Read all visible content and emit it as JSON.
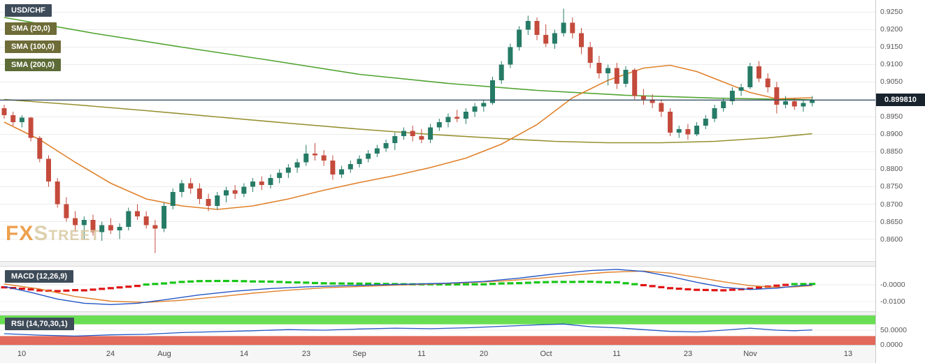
{
  "legend": {
    "symbol": {
      "label": "USD/CHF",
      "bg": "#3e4b58"
    },
    "smas": [
      {
        "label": "SMA (20,0)",
        "bg": "#6e6c37"
      },
      {
        "label": "SMA (100,0)",
        "bg": "#6e6c37"
      },
      {
        "label": "SMA (200,0)",
        "bg": "#5d6c37"
      }
    ]
  },
  "watermark": {
    "fx": "FX",
    "street": "Street",
    "fx_color": "#eb9030",
    "street_color": "#d9c9a2"
  },
  "icons": {
    "resize_grip": "≡"
  },
  "chart_data": {
    "type": "candlestick",
    "symbol": "USD/CHF",
    "timeframe": "daily",
    "price": 0.89981,
    "price_label": "0.899810",
    "y_axis": {
      "min": 0.86,
      "max": 0.925,
      "step": 0.005,
      "levels": [
        0.925,
        0.92,
        0.915,
        0.91,
        0.905,
        0.9,
        0.895,
        0.89,
        0.885,
        0.88,
        0.875,
        0.87,
        0.865,
        0.86
      ]
    },
    "x_ticks": [
      {
        "label": "10",
        "i": 2
      },
      {
        "label": "24",
        "i": 12
      },
      {
        "label": "Aug",
        "i": 18
      },
      {
        "label": "14",
        "i": 27
      },
      {
        "label": "23",
        "i": 34
      },
      {
        "label": "Sep",
        "i": 40
      },
      {
        "label": "11",
        "i": 47
      },
      {
        "label": "20",
        "i": 54
      },
      {
        "label": "Oct",
        "i": 61
      },
      {
        "label": "11",
        "i": 69
      },
      {
        "label": "23",
        "i": 77
      },
      {
        "label": "Nov",
        "i": 84
      },
      {
        "label": "13",
        "i": 95
      }
    ],
    "candles": [
      [
        0.8975,
        0.8985,
        0.8945,
        0.8955
      ],
      [
        0.8955,
        0.8965,
        0.8925,
        0.8935
      ],
      [
        0.8935,
        0.8955,
        0.892,
        0.8948
      ],
      [
        0.8948,
        0.895,
        0.888,
        0.889
      ],
      [
        0.889,
        0.8895,
        0.882,
        0.883
      ],
      [
        0.883,
        0.884,
        0.875,
        0.8765
      ],
      [
        0.8765,
        0.8775,
        0.869,
        0.87
      ],
      [
        0.87,
        0.872,
        0.865,
        0.866
      ],
      [
        0.866,
        0.868,
        0.862,
        0.864
      ],
      [
        0.864,
        0.8665,
        0.86,
        0.8655
      ],
      [
        0.8655,
        0.867,
        0.861,
        0.862
      ],
      [
        0.862,
        0.865,
        0.8595,
        0.864
      ],
      [
        0.864,
        0.866,
        0.8615,
        0.8625
      ],
      [
        0.8625,
        0.8645,
        0.86,
        0.8635
      ],
      [
        0.8635,
        0.869,
        0.8625,
        0.868
      ],
      [
        0.868,
        0.87,
        0.8655,
        0.8665
      ],
      [
        0.8665,
        0.868,
        0.863,
        0.864
      ],
      [
        0.864,
        0.8655,
        0.856,
        0.863
      ],
      [
        0.863,
        0.8705,
        0.862,
        0.8695
      ],
      [
        0.8695,
        0.8745,
        0.8685,
        0.8735
      ],
      [
        0.8735,
        0.877,
        0.872,
        0.876
      ],
      [
        0.876,
        0.8775,
        0.873,
        0.8745
      ],
      [
        0.8745,
        0.876,
        0.87,
        0.8715
      ],
      [
        0.8715,
        0.873,
        0.868,
        0.8695
      ],
      [
        0.8695,
        0.8735,
        0.8685,
        0.8725
      ],
      [
        0.8725,
        0.875,
        0.8705,
        0.874
      ],
      [
        0.874,
        0.8755,
        0.8715,
        0.873
      ],
      [
        0.873,
        0.876,
        0.872,
        0.875
      ],
      [
        0.875,
        0.8775,
        0.8735,
        0.8765
      ],
      [
        0.8765,
        0.878,
        0.874,
        0.8755
      ],
      [
        0.8755,
        0.8785,
        0.8745,
        0.8775
      ],
      [
        0.8775,
        0.88,
        0.876,
        0.879
      ],
      [
        0.879,
        0.8815,
        0.8775,
        0.8805
      ],
      [
        0.8805,
        0.883,
        0.879,
        0.882
      ],
      [
        0.882,
        0.887,
        0.881,
        0.8845
      ],
      [
        0.8845,
        0.8875,
        0.8825,
        0.884
      ],
      [
        0.884,
        0.8855,
        0.881,
        0.8825
      ],
      [
        0.8825,
        0.884,
        0.877,
        0.8785
      ],
      [
        0.8785,
        0.881,
        0.8775,
        0.88
      ],
      [
        0.88,
        0.8825,
        0.879,
        0.8815
      ],
      [
        0.8815,
        0.884,
        0.8805,
        0.883
      ],
      [
        0.883,
        0.8855,
        0.882,
        0.8845
      ],
      [
        0.8845,
        0.887,
        0.8835,
        0.886
      ],
      [
        0.886,
        0.8885,
        0.885,
        0.8875
      ],
      [
        0.8875,
        0.8905,
        0.8855,
        0.8895
      ],
      [
        0.8895,
        0.892,
        0.8885,
        0.891
      ],
      [
        0.891,
        0.8925,
        0.888,
        0.8895
      ],
      [
        0.8895,
        0.8915,
        0.8875,
        0.8885
      ],
      [
        0.8885,
        0.893,
        0.8875,
        0.892
      ],
      [
        0.892,
        0.8945,
        0.891,
        0.8935
      ],
      [
        0.8935,
        0.896,
        0.892,
        0.895
      ],
      [
        0.895,
        0.897,
        0.8935,
        0.8945
      ],
      [
        0.8945,
        0.8975,
        0.893,
        0.8965
      ],
      [
        0.8965,
        0.899,
        0.895,
        0.898
      ],
      [
        0.898,
        0.9,
        0.8965,
        0.899
      ],
      [
        0.899,
        0.9065,
        0.8985,
        0.9055
      ],
      [
        0.9055,
        0.911,
        0.9045,
        0.91
      ],
      [
        0.91,
        0.916,
        0.909,
        0.915
      ],
      [
        0.915,
        0.921,
        0.914,
        0.92
      ],
      [
        0.92,
        0.924,
        0.9185,
        0.9225
      ],
      [
        0.9225,
        0.9235,
        0.917,
        0.9185
      ],
      [
        0.9185,
        0.9215,
        0.915,
        0.916
      ],
      [
        0.916,
        0.92,
        0.9145,
        0.919
      ],
      [
        0.919,
        0.926,
        0.918,
        0.922
      ],
      [
        0.922,
        0.9235,
        0.9175,
        0.919
      ],
      [
        0.919,
        0.9205,
        0.913,
        0.915
      ],
      [
        0.915,
        0.9165,
        0.909,
        0.9105
      ],
      [
        0.9105,
        0.9125,
        0.906,
        0.9075
      ],
      [
        0.9075,
        0.91,
        0.904,
        0.909
      ],
      [
        0.909,
        0.9105,
        0.903,
        0.9045
      ],
      [
        0.9045,
        0.9095,
        0.9035,
        0.9085
      ],
      [
        0.9085,
        0.909,
        0.9,
        0.901
      ],
      [
        0.901,
        0.903,
        0.8985,
        0.9
      ],
      [
        0.9,
        0.9015,
        0.8975,
        0.899
      ],
      [
        0.899,
        0.9,
        0.895,
        0.8965
      ],
      [
        0.8965,
        0.8975,
        0.8895,
        0.8905
      ],
      [
        0.8905,
        0.8925,
        0.889,
        0.8915
      ],
      [
        0.8915,
        0.893,
        0.8885,
        0.89
      ],
      [
        0.89,
        0.8935,
        0.8895,
        0.8925
      ],
      [
        0.8925,
        0.8955,
        0.8915,
        0.8945
      ],
      [
        0.8945,
        0.8985,
        0.8935,
        0.8975
      ],
      [
        0.8975,
        0.9005,
        0.8965,
        0.8995
      ],
      [
        0.8995,
        0.9035,
        0.8985,
        0.9025
      ],
      [
        0.9025,
        0.9045,
        0.901,
        0.9035
      ],
      [
        0.9035,
        0.9105,
        0.903,
        0.9095
      ],
      [
        0.9095,
        0.911,
        0.905,
        0.906
      ],
      [
        0.906,
        0.9075,
        0.902,
        0.9035
      ],
      [
        0.9035,
        0.905,
        0.896,
        0.8985
      ],
      [
        0.8985,
        0.901,
        0.8975,
        0.8995
      ],
      [
        0.8995,
        0.9005,
        0.897,
        0.898
      ],
      [
        0.898,
        0.9,
        0.8965,
        0.899
      ],
      [
        0.899,
        0.901,
        0.898,
        0.8998
      ]
    ],
    "overlays": {
      "sma20": {
        "name": "SMA (20,0)",
        "points": [
          [
            0,
            0.8935
          ],
          [
            4,
            0.8885
          ],
          [
            8,
            0.882
          ],
          [
            12,
            0.876
          ],
          [
            16,
            0.8715
          ],
          [
            20,
            0.8695
          ],
          [
            24,
            0.8685
          ],
          [
            28,
            0.8695
          ],
          [
            32,
            0.8715
          ],
          [
            36,
            0.874
          ],
          [
            40,
            0.8762
          ],
          [
            44,
            0.8782
          ],
          [
            48,
            0.8805
          ],
          [
            52,
            0.8832
          ],
          [
            56,
            0.8872
          ],
          [
            60,
            0.8928
          ],
          [
            64,
            0.9005
          ],
          [
            68,
            0.9055
          ],
          [
            72,
            0.909
          ],
          [
            75,
            0.9098
          ],
          [
            78,
            0.908
          ],
          [
            81,
            0.905
          ],
          [
            84,
            0.902
          ],
          [
            87,
            0.9002
          ],
          [
            91,
            0.9005
          ]
        ]
      },
      "sma100": {
        "name": "SMA (100,0)",
        "points": [
          [
            0,
            0.9
          ],
          [
            8,
            0.8985
          ],
          [
            16,
            0.8968
          ],
          [
            24,
            0.895
          ],
          [
            32,
            0.8932
          ],
          [
            40,
            0.8915
          ],
          [
            48,
            0.89
          ],
          [
            56,
            0.8888
          ],
          [
            62,
            0.888
          ],
          [
            68,
            0.8876
          ],
          [
            74,
            0.8876
          ],
          [
            80,
            0.888
          ],
          [
            86,
            0.889
          ],
          [
            91,
            0.8902
          ]
        ]
      },
      "sma200": {
        "name": "SMA (200,0)",
        "points": [
          [
            0,
            0.9235
          ],
          [
            10,
            0.919
          ],
          [
            20,
            0.915
          ],
          [
            30,
            0.9112
          ],
          [
            40,
            0.9072
          ],
          [
            50,
            0.9046
          ],
          [
            60,
            0.9026
          ],
          [
            70,
            0.9012
          ],
          [
            80,
            0.9004
          ],
          [
            91,
            0.8999
          ]
        ]
      }
    },
    "macd": {
      "label": "MACD (12,26,9)",
      "line_points": [
        [
          0,
          -0.001
        ],
        [
          3,
          -0.0045
        ],
        [
          6,
          -0.0085
        ],
        [
          9,
          -0.011
        ],
        [
          12,
          -0.0118
        ],
        [
          15,
          -0.011
        ],
        [
          18,
          -0.009
        ],
        [
          22,
          -0.006
        ],
        [
          26,
          -0.0038
        ],
        [
          30,
          -0.0022
        ],
        [
          34,
          -0.0012
        ],
        [
          38,
          -0.0006
        ],
        [
          42,
          0.0
        ],
        [
          46,
          0.0004
        ],
        [
          50,
          0.001
        ],
        [
          54,
          0.002
        ],
        [
          58,
          0.004
        ],
        [
          62,
          0.0065
        ],
        [
          66,
          0.0085
        ],
        [
          69,
          0.0092
        ],
        [
          72,
          0.008
        ],
        [
          75,
          0.005
        ],
        [
          78,
          0.0015
        ],
        [
          81,
          -0.0015
        ],
        [
          84,
          -0.0028
        ],
        [
          87,
          -0.002
        ],
        [
          89,
          -0.0008
        ],
        [
          91,
          0.0
        ]
      ],
      "signal_points": [
        [
          0,
          0.0005
        ],
        [
          4,
          -0.0025
        ],
        [
          8,
          -0.007
        ],
        [
          12,
          -0.0098
        ],
        [
          16,
          -0.0105
        ],
        [
          20,
          -0.0092
        ],
        [
          24,
          -0.0072
        ],
        [
          28,
          -0.005
        ],
        [
          32,
          -0.0032
        ],
        [
          36,
          -0.0018
        ],
        [
          40,
          -0.001
        ],
        [
          44,
          -0.0002
        ],
        [
          48,
          0.0004
        ],
        [
          52,
          0.0012
        ],
        [
          56,
          0.0022
        ],
        [
          60,
          0.0038
        ],
        [
          64,
          0.0058
        ],
        [
          68,
          0.0075
        ],
        [
          72,
          0.0082
        ],
        [
          75,
          0.007
        ],
        [
          78,
          0.0045
        ],
        [
          81,
          0.0018
        ],
        [
          84,
          -0.0005
        ],
        [
          87,
          -0.0015
        ],
        [
          89,
          -0.0012
        ],
        [
          91,
          -0.0005
        ]
      ],
      "axis": [
        {
          "label": "-0.0000",
          "value": 0
        },
        {
          "label": "-0.0100",
          "value": -0.01
        }
      ]
    },
    "rsi": {
      "label": "RSI (14,70,30,1)",
      "points": [
        [
          0,
          38
        ],
        [
          4,
          33
        ],
        [
          8,
          30
        ],
        [
          12,
          34
        ],
        [
          16,
          36
        ],
        [
          20,
          42
        ],
        [
          24,
          45
        ],
        [
          28,
          48
        ],
        [
          32,
          52
        ],
        [
          36,
          50
        ],
        [
          40,
          54
        ],
        [
          44,
          57
        ],
        [
          48,
          55
        ],
        [
          52,
          58
        ],
        [
          56,
          63
        ],
        [
          60,
          68
        ],
        [
          63,
          71
        ],
        [
          66,
          62
        ],
        [
          69,
          58
        ],
        [
          72,
          52
        ],
        [
          75,
          46
        ],
        [
          78,
          44
        ],
        [
          81,
          50
        ],
        [
          84,
          57
        ],
        [
          87,
          50
        ],
        [
          89,
          48
        ],
        [
          91,
          51
        ]
      ],
      "bands": {
        "upper": [
          70,
          100
        ],
        "lower": [
          0,
          30
        ]
      },
      "axis": [
        {
          "label": "50.0000",
          "value": 50
        },
        {
          "label": "0.0000",
          "value": 0
        }
      ]
    },
    "colors": {
      "up": "#267b66",
      "down": "#c44b3c",
      "sma20": "#e0812a",
      "sma100": "#96902f",
      "sma200": "#4fa32f",
      "macd_line": "#2356c5",
      "macd_signal": "#e0812a",
      "hist_up": "#17c517",
      "hist_down": "#e01414",
      "rsi_line": "#2356c5",
      "rsi_upper_band": "#6ade53",
      "rsi_lower_band": "#e2695b",
      "price_line": "#2f4a63",
      "price_badge_bg": "#18232e",
      "indicator_badge_bg": "#3e4b58",
      "grid": "#ececec",
      "axis_text": "#555555"
    }
  }
}
